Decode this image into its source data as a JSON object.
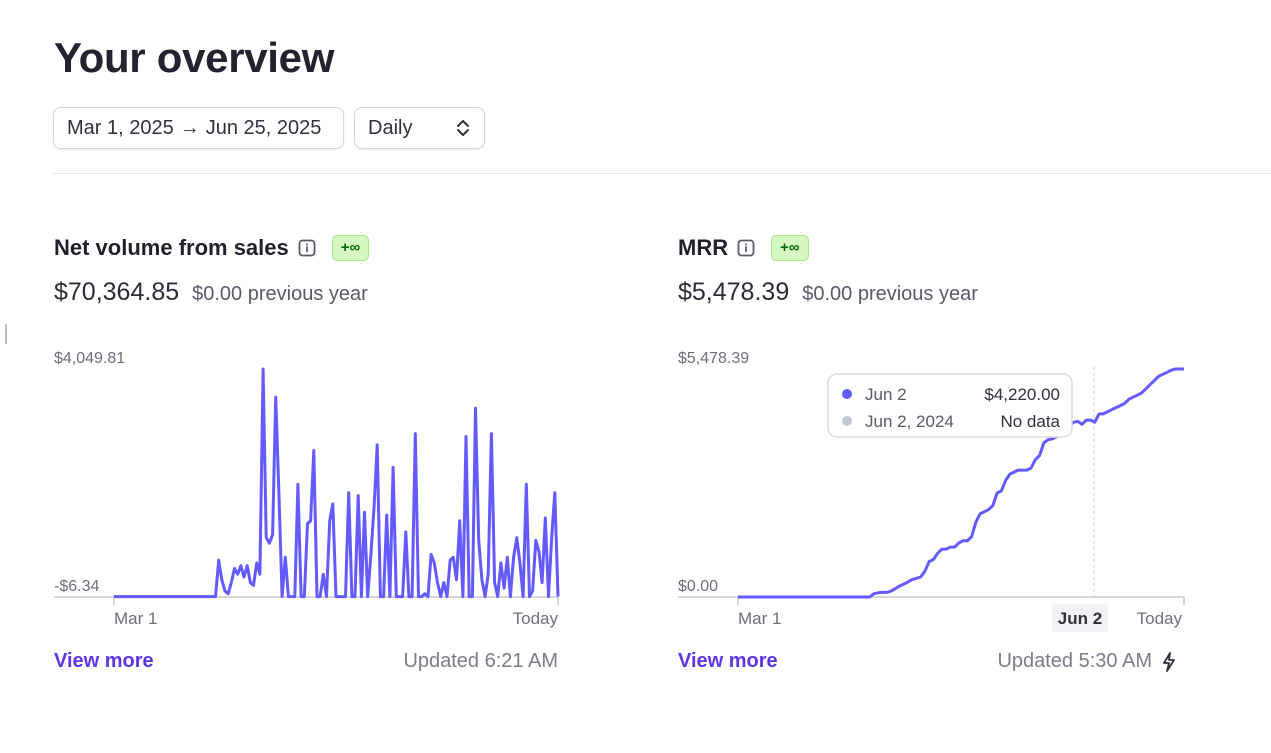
{
  "header": {
    "title": "Your overview",
    "date_range": {
      "start": "Mar 1, 2025",
      "arrow": "→",
      "end": "Jun 25, 2025"
    },
    "interval": "Daily"
  },
  "colors": {
    "line": "#635bff",
    "accent": "#5c37e8",
    "badge_bg": "#d7f7c2",
    "badge_text": "#05690d",
    "muted": "#7a7d89"
  },
  "icons": {
    "info": "info-icon",
    "chevron": "chevron-up-down-icon",
    "bolt": "lightning-bolt-icon",
    "arrow": "arrow-right-icon"
  },
  "cards": [
    {
      "title": "Net volume from sales",
      "badge": "+∞",
      "value": "$70,364.85",
      "previous": "$0.00 previous year",
      "link": "View more",
      "updated": "Updated 6:21 AM"
    },
    {
      "title": "MRR",
      "badge": "+∞",
      "value": "$5,478.39",
      "previous": "$0.00 previous year",
      "link": "View more",
      "updated": "Updated 5:30 AM"
    }
  ],
  "chart_data": [
    {
      "type": "line",
      "title": "Net volume from sales",
      "y_max_label": "$4,049.81",
      "y_min_label": "-$6.34",
      "ylim": [
        -6.34,
        4049.81
      ],
      "x_start_label": "Mar 1",
      "x_end_label": "Today",
      "values": [
        0,
        0,
        0,
        0,
        0,
        0,
        0,
        0,
        0,
        0,
        0,
        0,
        0,
        0,
        0,
        0,
        0,
        0,
        0,
        0,
        0,
        0,
        0,
        0,
        0,
        0,
        0,
        0,
        0,
        0,
        0,
        0,
        0,
        650,
        300,
        100,
        50,
        250,
        500,
        400,
        550,
        350,
        550,
        250,
        200,
        600,
        400,
        4050,
        1050,
        950,
        1100,
        3550,
        1850,
        0,
        700,
        0,
        0,
        0,
        2000,
        0,
        0,
        1300,
        1350,
        2600,
        0,
        0,
        400,
        0,
        1350,
        1650,
        0,
        0,
        0,
        0,
        1850,
        0,
        0,
        1800,
        0,
        1500,
        0,
        750,
        1600,
        2700,
        0,
        0,
        1450,
        0,
        2300,
        0,
        0,
        0,
        1150,
        0,
        0,
        2900,
        0,
        0,
        50,
        0,
        750,
        600,
        250,
        0,
        250,
        0,
        650,
        700,
        300,
        1350,
        0,
        2850,
        0,
        0,
        3350,
        1000,
        300,
        0,
        400,
        2900,
        250,
        0,
        600,
        150,
        700,
        0,
        700,
        1050,
        600,
        0,
        2000,
        0,
        100,
        1000,
        800,
        250,
        1400,
        0,
        1050,
        1850,
        0
      ],
      "series_color": "#635bff"
    },
    {
      "type": "line",
      "title": "MRR",
      "y_max_label": "$5,478.39",
      "y_min_label": "$0.00",
      "ylim": [
        0,
        5478.39
      ],
      "x_start_label": "Mar 1",
      "x_end_label": "Today",
      "x_highlight_label": "Jun 2",
      "values": [
        0,
        0,
        0,
        0,
        0,
        0,
        0,
        0,
        0,
        0,
        0,
        0,
        0,
        0,
        0,
        0,
        0,
        0,
        0,
        0,
        0,
        0,
        0,
        0,
        0,
        0,
        0,
        0,
        0,
        0,
        0,
        0,
        80,
        100,
        110,
        110,
        140,
        200,
        260,
        310,
        360,
        420,
        450,
        480,
        620,
        850,
        900,
        1050,
        1150,
        1150,
        1200,
        1200,
        1300,
        1350,
        1350,
        1450,
        1800,
        2000,
        2050,
        2100,
        2200,
        2500,
        2550,
        2800,
        2950,
        3000,
        3050,
        3050,
        3050,
        3100,
        3300,
        3400,
        3700,
        3780,
        3800,
        3850,
        3920,
        4000,
        4100,
        4200,
        4220,
        4150,
        4250,
        4250,
        4200,
        4400,
        4400,
        4450,
        4500,
        4550,
        4600,
        4650,
        4750,
        4800,
        4850,
        4900,
        5000,
        5100,
        5200,
        5300,
        5350,
        5400,
        5450,
        5478.39,
        5478.39,
        5478.39
      ],
      "series_color": "#635bff",
      "tooltip": [
        {
          "label": "Jun 2",
          "value": "$4,220.00",
          "color": "#635bff"
        },
        {
          "label": "Jun 2, 2024",
          "value": "No data",
          "color": "#c3c8d0"
        }
      ]
    }
  ]
}
